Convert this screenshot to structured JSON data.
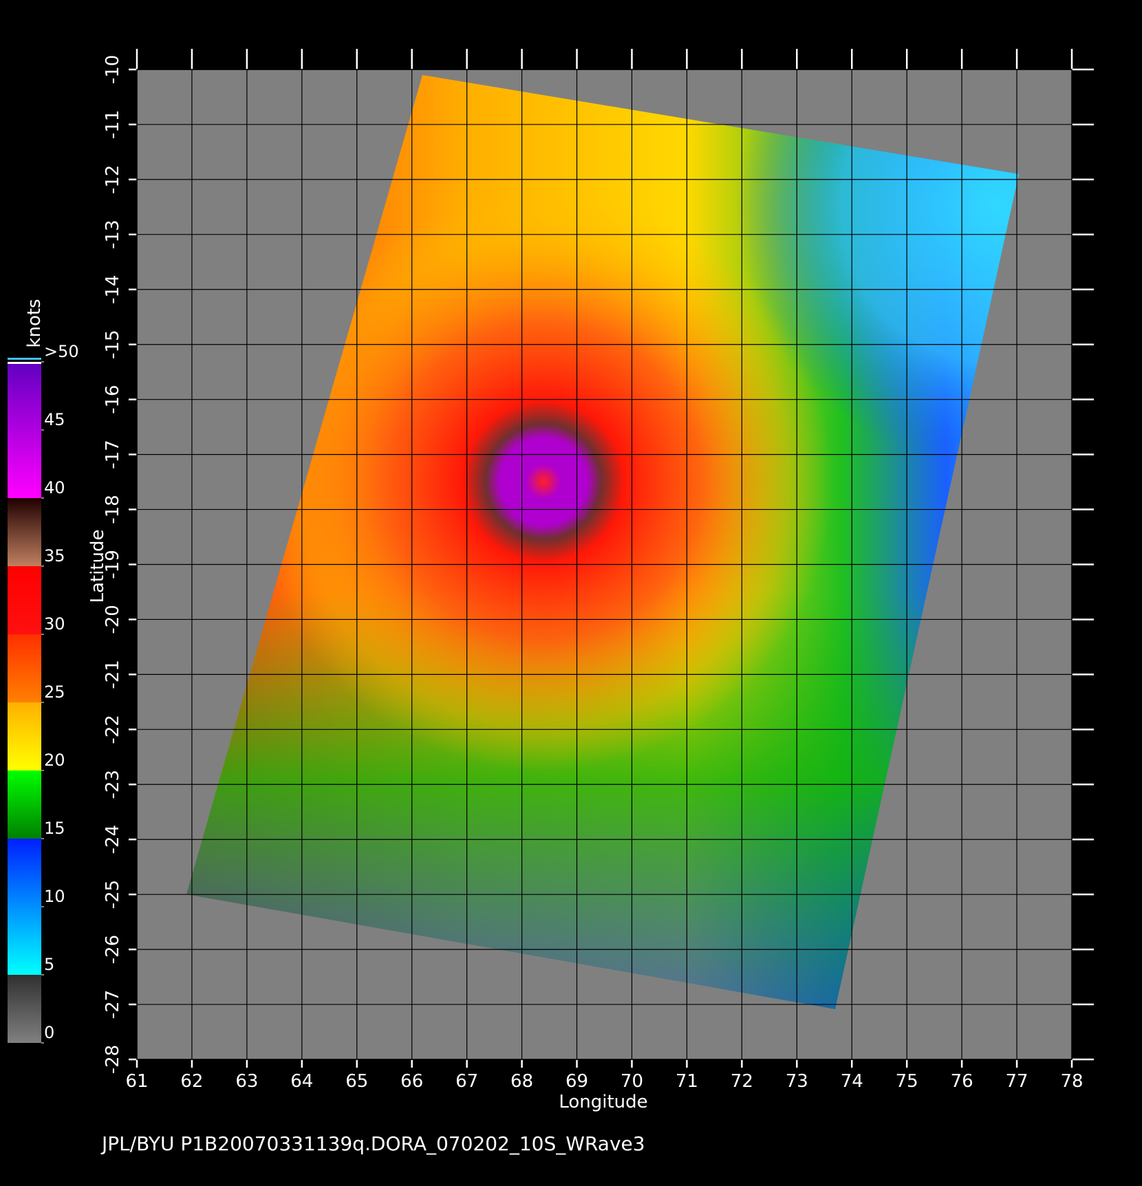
{
  "map": {
    "xlabel": "Longitude",
    "ylabel": "Latitude",
    "xlim": [
      61,
      78
    ],
    "ylim": [
      -28,
      -10
    ],
    "xticks": [
      61,
      62,
      63,
      64,
      65,
      66,
      67,
      68,
      69,
      70,
      71,
      72,
      73,
      74,
      75,
      76,
      77,
      78
    ],
    "yticks": [
      -10,
      -11,
      -12,
      -13,
      -14,
      -15,
      -16,
      -17,
      -18,
      -19,
      -20,
      -21,
      -22,
      -23,
      -24,
      -25,
      -26,
      -27,
      -28
    ]
  },
  "colorbar": {
    "title": "knots",
    "lim": [
      0,
      50
    ],
    "ticks": [
      0,
      5,
      10,
      15,
      20,
      25,
      30,
      35,
      40,
      45,
      {
        "value": 50,
        "label": ">50"
      }
    ]
  },
  "footer": "JPL/BYU  P1B20070331139q.DORA_070202_10S_WRave3"
}
